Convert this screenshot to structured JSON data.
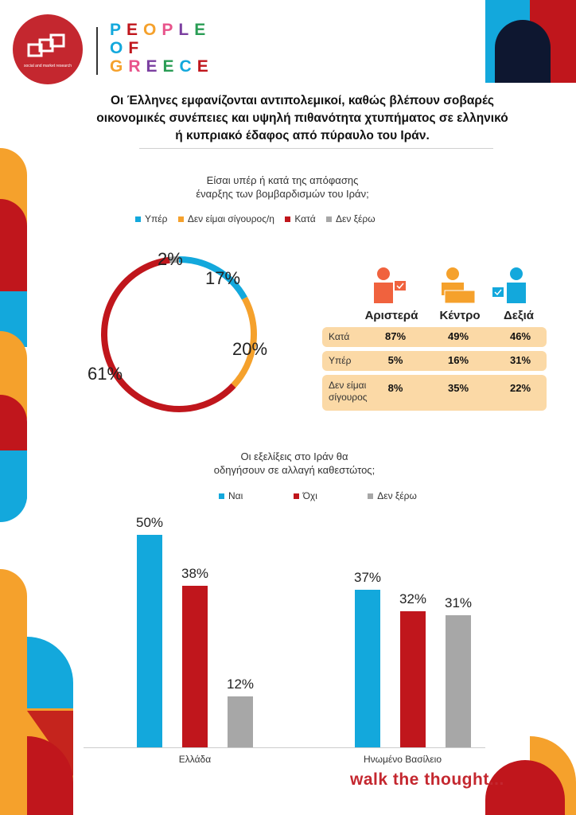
{
  "brand": {
    "name_lines": [
      "PEOPLE",
      "OF",
      "GREECE"
    ],
    "logo_sub": "social and market research",
    "tagline": "walk the thought..."
  },
  "headline": "Οι Έλληνες εμφανίζονται αντιπολεμικοί, καθώς βλέπουν σοβαρές οικονομικές συνέπειες και υψηλή πιθανότητα χτυπήματος σε ελληνικό ή κυπριακό έδαφος από πύραυλο του Ιράν.",
  "colors": {
    "blue": "#13a8dc",
    "orange": "#f5a12c",
    "red": "#c0161c",
    "gray": "#a7a7a7",
    "navy": "#0e1730",
    "table_row": "#fbd9a6"
  },
  "chart_data": [
    {
      "type": "pie",
      "title_lines": [
        "Είσαι υπέρ ή κατά της απόφασης",
        "έναρξης των βομβαρδισμών του Ιράν;"
      ],
      "categories": [
        "Υπέρ",
        "Δεν είμαι σίγουρος/η",
        "Κατά",
        "Δεν ξέρω"
      ],
      "values": [
        17,
        20,
        61,
        2
      ],
      "labels": [
        "17%",
        "20%",
        "61%",
        "2%"
      ]
    },
    {
      "type": "table",
      "columns": [
        "Αριστερά",
        "Κέντρο",
        "Δεξιά"
      ],
      "rows": [
        {
          "label": "Κατά",
          "values": [
            "87%",
            "49%",
            "46%"
          ]
        },
        {
          "label": "Υπέρ",
          "values": [
            "5%",
            "16%",
            "31%"
          ]
        },
        {
          "label": "Δεν είμαι σίγουρος",
          "values": [
            "8%",
            "35%",
            "22%"
          ]
        }
      ]
    },
    {
      "type": "bar",
      "title_lines": [
        "Οι εξελίξεις στο Ιράν θα",
        "οδηγήσουν σε αλλαγή καθεστώτος;"
      ],
      "categories": [
        "Ελλάδα",
        "Ηνωμένο Βασίλειο"
      ],
      "series": [
        {
          "name": "Ναι",
          "values": [
            50,
            37
          ],
          "labels": [
            "50%",
            "37%"
          ]
        },
        {
          "name": "Όχι",
          "values": [
            38,
            32
          ],
          "labels": [
            "38%",
            "32%"
          ]
        },
        {
          "name": "Δεν ξέρω",
          "values": [
            12,
            31
          ],
          "labels": [
            "12%",
            "31%"
          ]
        }
      ],
      "ylim": [
        0,
        50
      ]
    }
  ]
}
